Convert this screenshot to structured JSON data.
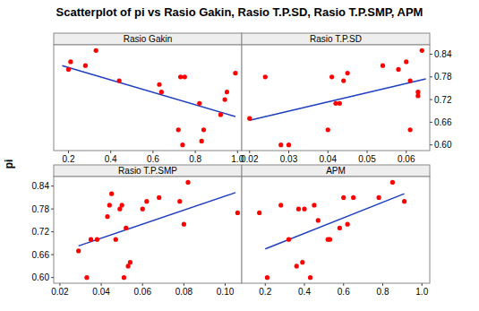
{
  "chart_data": {
    "type": "scatter",
    "title": "Scatterplot of pi vs Rasio Gakin, Rasio T.P.SD, Rasio T.P.SMP, APM",
    "y_label": "pi",
    "ylim": [
      0.585,
      0.865
    ],
    "yticks": [
      {
        "value": 0.6,
        "label": "0.60"
      },
      0.66,
      0.72,
      0.78,
      0.84
    ],
    "color": "#ff0000",
    "marker": "circle",
    "panels": [
      {
        "title": "Rasio Gakin",
        "xlim": [
          0.13,
          1.02
        ],
        "xticks": [
          0.2,
          0.4,
          0.6,
          0.8,
          {
            "value": 1,
            "label": "1.0"
          }
        ],
        "x": [
          0.2,
          0.21,
          0.28,
          0.33,
          0.44,
          0.63,
          0.64,
          0.73,
          0.75,
          0.72,
          0.74,
          0.83,
          0.84,
          0.82,
          0.92,
          0.94,
          0.95,
          0.99
        ],
        "y": [
          0.8,
          0.82,
          0.81,
          0.85,
          0.77,
          0.76,
          0.74,
          0.78,
          0.78,
          0.64,
          0.6,
          0.61,
          0.64,
          0.71,
          0.68,
          0.72,
          0.74,
          0.79
        ],
        "fit": {
          "color": "#1f3fbf",
          "x": [
            0.17,
            0.99
          ],
          "y": [
            0.81,
            0.675
          ]
        }
      },
      {
        "title": "Rasio T.P.SD",
        "xlim": [
          0.018,
          0.066
        ],
        "xticks": [
          0.02,
          0.03,
          0.04,
          0.05,
          0.06
        ],
        "x": [
          0.02,
          0.024,
          0.028,
          0.03,
          0.04,
          0.041,
          0.042,
          0.043,
          0.044,
          0.045,
          0.054,
          0.058,
          0.06,
          0.061,
          0.061,
          0.063,
          0.063,
          0.064
        ],
        "y": [
          0.67,
          0.78,
          0.6,
          0.6,
          0.64,
          0.78,
          0.71,
          0.71,
          0.77,
          0.79,
          0.81,
          0.8,
          0.82,
          0.77,
          0.64,
          0.74,
          0.73,
          0.85
        ],
        "fit": {
          "color": "#1f3fbf",
          "x": [
            0.02,
            0.065
          ],
          "y": [
            0.665,
            0.775
          ]
        }
      },
      {
        "title": "Rasio T.P.SMP",
        "xlim": [
          0.017,
          0.108
        ],
        "xticks": [
          0.02,
          0.04,
          0.06,
          0.08,
          {
            "value": 0.1,
            "label": "0.10"
          }
        ],
        "x": [
          0.029,
          0.033,
          0.035,
          0.038,
          0.043,
          0.044,
          0.045,
          0.047,
          0.049,
          0.05,
          0.051,
          0.052,
          0.053,
          0.054,
          0.06,
          0.062,
          0.068,
          0.078,
          0.08,
          0.082,
          0.106
        ],
        "y": [
          0.67,
          0.6,
          0.7,
          0.7,
          0.76,
          0.79,
          0.82,
          0.7,
          0.78,
          0.79,
          0.6,
          0.73,
          0.63,
          0.64,
          0.78,
          0.8,
          0.81,
          0.8,
          0.74,
          0.85,
          0.77
        ],
        "fit": {
          "color": "#1f3fbf",
          "x": [
            0.029,
            0.105
          ],
          "y": [
            0.683,
            0.823
          ]
        }
      },
      {
        "title": "APM",
        "xlim": [
          0.08,
          1.04
        ],
        "xticks": [
          0.2,
          0.4,
          0.6,
          0.8,
          {
            "value": 1,
            "label": "1.0"
          }
        ],
        "x": [
          0.17,
          0.21,
          0.28,
          0.32,
          0.36,
          0.37,
          0.39,
          0.4,
          0.43,
          0.45,
          0.47,
          0.52,
          0.53,
          0.58,
          0.6,
          0.62,
          0.65,
          0.78,
          0.85,
          0.91
        ],
        "y": [
          0.77,
          0.6,
          0.79,
          0.7,
          0.63,
          0.78,
          0.64,
          0.78,
          0.6,
          0.79,
          0.75,
          0.7,
          0.7,
          0.73,
          0.81,
          0.74,
          0.81,
          0.81,
          0.85,
          0.8
        ],
        "fit": {
          "color": "#1f3fbf",
          "x": [
            0.2,
            0.91
          ],
          "y": [
            0.675,
            0.82
          ]
        }
      }
    ]
  }
}
